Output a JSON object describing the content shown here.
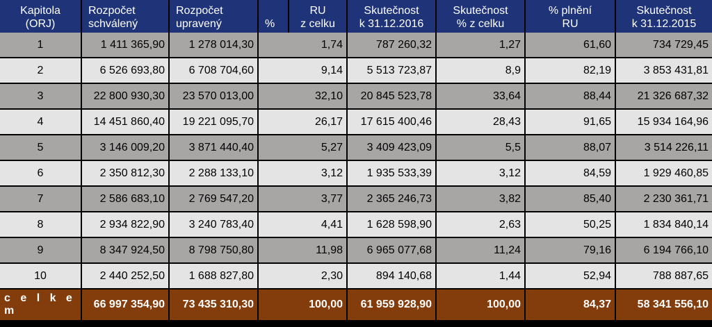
{
  "header": {
    "kapitola": [
      "Kapitola",
      "(ORJ)"
    ],
    "rs": [
      "Rozpočet",
      "schválený"
    ],
    "ru": [
      "Rozpočet",
      "upravený"
    ],
    "pct": [
      "",
      "%"
    ],
    "ru_celek": [
      "RU",
      "z celku"
    ],
    "skut2016": [
      "Skutečnost",
      "k 31.12.2016"
    ],
    "skut_pct": [
      "Skutečnost",
      "% z celku"
    ],
    "plneni": [
      "% plnění",
      "RU"
    ],
    "skut2015": [
      "Skutečnost",
      "k 31.12.2015"
    ]
  },
  "rows": [
    {
      "kapitola": "1",
      "rs": "1 411 365,90",
      "ru": "1 278 014,30",
      "ru_pct": "1,74",
      "skut2016": "787 260,32",
      "skut_pct": "1,27",
      "plneni": "61,60",
      "skut2015": "734 729,45"
    },
    {
      "kapitola": "2",
      "rs": "6 526 693,80",
      "ru": "6 708 704,60",
      "ru_pct": "9,14",
      "skut2016": "5 513 723,87",
      "skut_pct": "8,9",
      "plneni": "82,19",
      "skut2015": "3 853 431,81"
    },
    {
      "kapitola": "3",
      "rs": "22 800 930,30",
      "ru": "23 570 013,00",
      "ru_pct": "32,10",
      "skut2016": "20 845 523,78",
      "skut_pct": "33,64",
      "plneni": "88,44",
      "skut2015": "21 326 687,32"
    },
    {
      "kapitola": "4",
      "rs": "14 451 860,40",
      "ru": "19 221 095,70",
      "ru_pct": "26,17",
      "skut2016": "17 615 400,46",
      "skut_pct": "28,43",
      "plneni": "91,65",
      "skut2015": "15 934 164,96"
    },
    {
      "kapitola": "5",
      "rs": "3 146 009,20",
      "ru": "3 871 440,40",
      "ru_pct": "5,27",
      "skut2016": "3 409 423,09",
      "skut_pct": "5,5",
      "plneni": "88,07",
      "skut2015": "3 514 226,11"
    },
    {
      "kapitola": "6",
      "rs": "2 350 812,30",
      "ru": "2 288 133,10",
      "ru_pct": "3,12",
      "skut2016": "1 935 533,39",
      "skut_pct": "3,12",
      "plneni": "84,59",
      "skut2015": "1 929 460,85"
    },
    {
      "kapitola": "7",
      "rs": "2 586 683,10",
      "ru": "2 769 547,20",
      "ru_pct": "3,77",
      "skut2016": "2 365 246,73",
      "skut_pct": "3,82",
      "plneni": "85,40",
      "skut2015": "2 230 361,71"
    },
    {
      "kapitola": "8",
      "rs": "2 934 822,90",
      "ru": "3 240 783,40",
      "ru_pct": "4,41",
      "skut2016": "1 628 598,90",
      "skut_pct": "2,63",
      "plneni": "50,25",
      "skut2015": "1 834 840,14"
    },
    {
      "kapitola": "9",
      "rs": "8 347 924,50",
      "ru": "8 798 750,80",
      "ru_pct": "11,98",
      "skut2016": "6 965 077,68",
      "skut_pct": "11,24",
      "plneni": "79,16",
      "skut2015": "6 194 766,10"
    },
    {
      "kapitola": "10",
      "rs": "2 440 252,50",
      "ru": "1 688 827,80",
      "ru_pct": "2,30",
      "skut2016": "894 140,68",
      "skut_pct": "1,44",
      "plneni": "52,94",
      "skut2015": "788 887,65"
    }
  ],
  "total": {
    "label": "c e l k e m",
    "rs": "66 997 354,90",
    "ru": "73 435 310,30",
    "ru_pct": "100,00",
    "skut2016": "61 959 928,90",
    "skut_pct": "100,00",
    "plneni": "84,37",
    "skut2015": "58 341 556,10"
  },
  "colors": {
    "header": "#1f3478",
    "row_dark": "#a8a5a5",
    "row_light": "#e4e4e4",
    "total": "#833c0c"
  }
}
